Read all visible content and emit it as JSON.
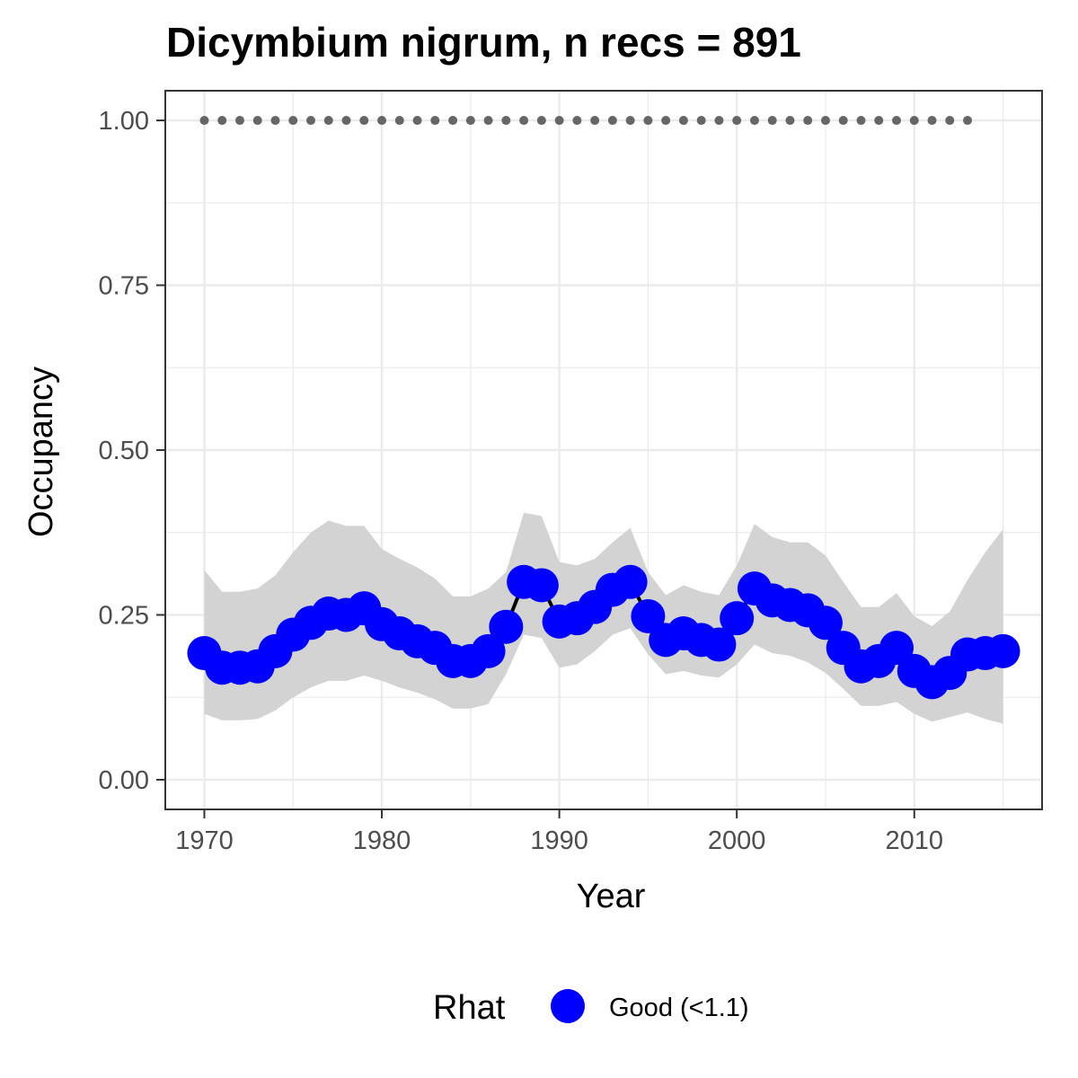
{
  "chart_data": {
    "type": "line",
    "title": "Dicymbium nigrum, n recs = 891",
    "xlabel": "Year",
    "ylabel": "Occupancy",
    "xlim": [
      1967.8,
      2017.2
    ],
    "ylim": [
      -0.045,
      1.045
    ],
    "x_ticks": [
      1970,
      1980,
      1990,
      2000,
      2010
    ],
    "y_ticks": [
      0.0,
      0.25,
      0.5,
      0.75,
      1.0
    ],
    "y_tick_labels": [
      "0.00",
      "0.25",
      "0.50",
      "0.75",
      "1.00"
    ],
    "grid": true,
    "legend": {
      "title": "Rhat",
      "label": "Good (<1.1)",
      "position": "bottom"
    },
    "colors": {
      "points": "#0000ff",
      "line": "#000000",
      "ribbon": "#d3d3d3",
      "reference": "#666666"
    },
    "x": [
      1970,
      1971,
      1972,
      1973,
      1974,
      1975,
      1976,
      1977,
      1978,
      1979,
      1980,
      1981,
      1982,
      1983,
      1984,
      1985,
      1986,
      1987,
      1988,
      1989,
      1990,
      1991,
      1992,
      1993,
      1994,
      1995,
      1996,
      1997,
      1998,
      1999,
      2000,
      2001,
      2002,
      2003,
      2004,
      2005,
      2006,
      2007,
      2008,
      2009,
      2010,
      2011,
      2012,
      2013,
      2014,
      2015
    ],
    "series": [
      {
        "values": [
          0.192,
          0.17,
          0.17,
          0.172,
          0.195,
          0.22,
          0.238,
          0.252,
          0.25,
          0.26,
          0.236,
          0.222,
          0.21,
          0.2,
          0.18,
          0.18,
          0.195,
          0.232,
          0.3,
          0.295,
          0.24,
          0.245,
          0.262,
          0.288,
          0.3,
          0.248,
          0.212,
          0.222,
          0.212,
          0.205,
          0.245,
          0.29,
          0.272,
          0.265,
          0.257,
          0.238,
          0.2,
          0.172,
          0.18,
          0.2,
          0.165,
          0.148,
          0.162,
          0.19,
          0.192,
          0.195
        ],
        "lower": [
          0.1,
          0.09,
          0.09,
          0.092,
          0.105,
          0.125,
          0.14,
          0.15,
          0.15,
          0.158,
          0.15,
          0.14,
          0.132,
          0.122,
          0.108,
          0.108,
          0.115,
          0.16,
          0.22,
          0.215,
          0.17,
          0.175,
          0.195,
          0.22,
          0.23,
          0.19,
          0.16,
          0.165,
          0.158,
          0.155,
          0.175,
          0.205,
          0.192,
          0.188,
          0.178,
          0.162,
          0.138,
          0.112,
          0.112,
          0.118,
          0.1,
          0.088,
          0.095,
          0.102,
          0.092,
          0.085
        ],
        "upper": [
          0.318,
          0.285,
          0.285,
          0.29,
          0.31,
          0.345,
          0.375,
          0.393,
          0.385,
          0.385,
          0.35,
          0.335,
          0.322,
          0.305,
          0.278,
          0.278,
          0.29,
          0.315,
          0.405,
          0.4,
          0.33,
          0.325,
          0.335,
          0.36,
          0.382,
          0.315,
          0.28,
          0.295,
          0.285,
          0.28,
          0.325,
          0.388,
          0.368,
          0.36,
          0.36,
          0.34,
          0.3,
          0.262,
          0.262,
          0.283,
          0.248,
          0.233,
          0.255,
          0.303,
          0.345,
          0.38
        ]
      }
    ],
    "reference": {
      "y": 1.0,
      "x": [
        1970,
        1971,
        1972,
        1973,
        1974,
        1975,
        1976,
        1977,
        1978,
        1979,
        1980,
        1981,
        1982,
        1983,
        1984,
        1985,
        1986,
        1987,
        1988,
        1989,
        1990,
        1991,
        1992,
        1993,
        1994,
        1995,
        1996,
        1997,
        1998,
        1999,
        2000,
        2001,
        2002,
        2003,
        2004,
        2005,
        2006,
        2007,
        2008,
        2009,
        2010,
        2011,
        2012,
        2013
      ]
    }
  }
}
